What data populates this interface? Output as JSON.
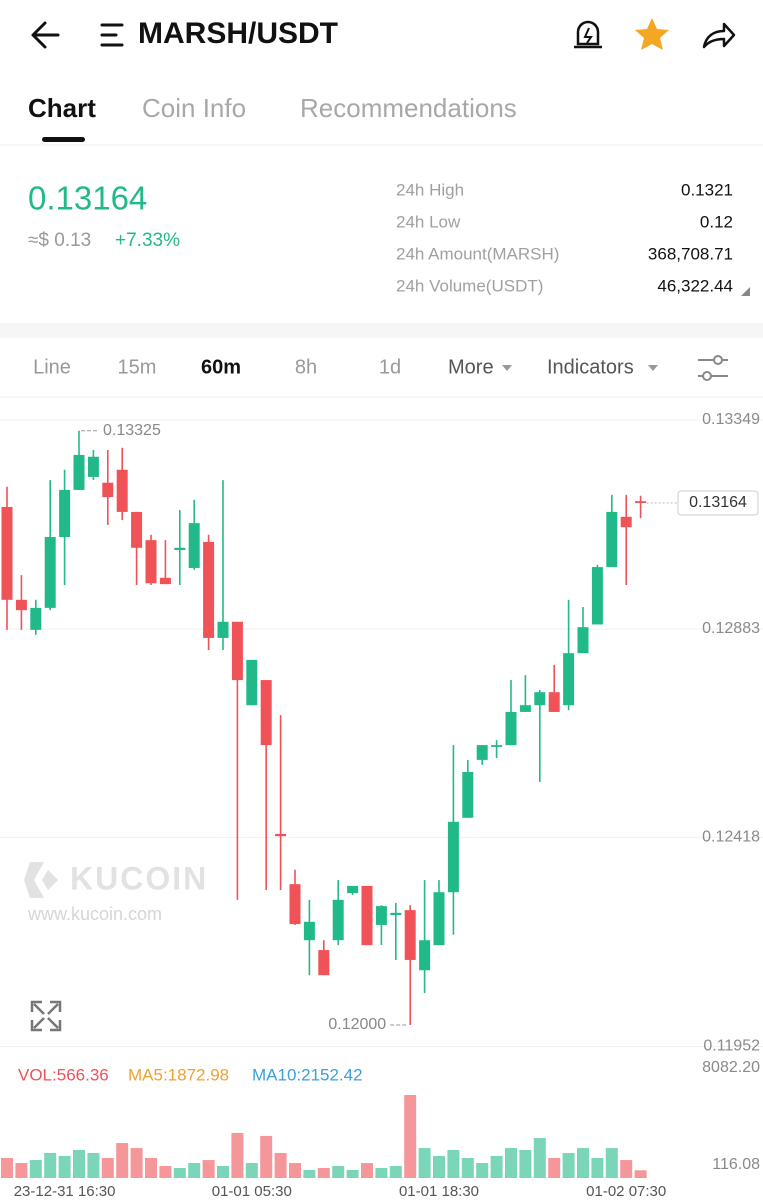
{
  "header": {
    "title": "MARSH/USDT"
  },
  "tabs": [
    "Chart",
    "Coin Info",
    "Recommendations"
  ],
  "ticker": {
    "price": "0.13164",
    "usd": "≈$ 0.13",
    "change": "+7.33%"
  },
  "stats": [
    {
      "label": "24h High",
      "value": "0.1321"
    },
    {
      "label": "24h Low",
      "value": "0.12"
    },
    {
      "label": "24h Amount(MARSH)",
      "value": "368,708.71"
    },
    {
      "label": "24h Volume(USDT)",
      "value": "46,322.44"
    }
  ],
  "intervals": [
    "Line",
    "15m",
    "60m",
    "8h",
    "1d",
    "More",
    "Indicators"
  ],
  "watermark": {
    "brand": "KUCOIN",
    "url": "www.kucoin.com"
  },
  "chart_data": {
    "type": "candlestick",
    "categories": [
      null,
      null,
      null,
      null,
      "23-12-31 16:30",
      null,
      null,
      null,
      null,
      null,
      null,
      null,
      null,
      null,
      null,
      null,
      null,
      "01-01 05:30",
      null,
      null,
      null,
      null,
      null,
      null,
      null,
      null,
      null,
      null,
      null,
      null,
      "01-01 18:30",
      null,
      null,
      null,
      null,
      null,
      null,
      null,
      null,
      null,
      null,
      null,
      null,
      "01-02 07:30",
      null
    ],
    "open": [
      0.13155,
      0.12948,
      0.12881,
      0.1293,
      0.13088,
      0.13193,
      0.13222,
      0.13209,
      0.13238,
      0.13144,
      0.13081,
      0.12997,
      0.13059,
      0.13019,
      0.13077,
      0.12863,
      0.12899,
      0.12713,
      0.12769,
      0.12426,
      0.12314,
      0.12189,
      0.12167,
      0.12189,
      0.12294,
      0.1231,
      0.12223,
      0.12245,
      0.12256,
      0.12122,
      0.12178,
      0.12296,
      0.12462,
      0.12591,
      0.1262,
      0.12624,
      0.12698,
      0.12713,
      0.12742,
      0.12713,
      0.12829,
      0.12893,
      0.13021,
      0.13133,
      0.13168
    ],
    "high": [
      0.132,
      0.13003,
      0.12948,
      0.13215,
      0.13238,
      0.13325,
      0.13282,
      0.13282,
      0.13287,
      0.13144,
      0.13093,
      0.13081,
      0.13148,
      0.13171,
      0.13093,
      0.13215,
      0.12899,
      0.12814,
      0.12769,
      0.12691,
      0.12346,
      0.12279,
      0.12189,
      0.12323,
      0.1231,
      0.1231,
      0.12267,
      0.12272,
      0.12267,
      0.12323,
      0.12323,
      0.12624,
      0.12591,
      0.12624,
      0.12635,
      0.12769,
      0.1278,
      0.12747,
      0.12803,
      0.12948,
      0.12932,
      0.13026,
      0.13182,
      0.13182,
      0.1318
    ],
    "low": [
      0.12881,
      0.12881,
      0.1287,
      0.12925,
      0.12981,
      0.13193,
      0.13215,
      0.13115,
      0.13126,
      0.12981,
      0.12981,
      0.12983,
      0.12981,
      0.13015,
      0.12836,
      0.12836,
      0.12279,
      0.12713,
      0.12301,
      0.12301,
      0.12223,
      0.12111,
      0.12111,
      0.12178,
      0.1229,
      0.12178,
      0.12178,
      0.12145,
      0.12,
      0.12071,
      0.12178,
      0.12201,
      0.12462,
      0.1258,
      0.12595,
      0.12624,
      0.12698,
      0.12542,
      0.12698,
      0.12702,
      0.12829,
      0.12893,
      0.13021,
      0.12981,
      0.1313
    ],
    "close": [
      0.12948,
      0.12925,
      0.1293,
      0.13088,
      0.13193,
      0.13271,
      0.13267,
      0.13177,
      0.13144,
      0.13064,
      0.12985,
      0.12983,
      0.13064,
      0.13119,
      0.12863,
      0.12899,
      0.12769,
      0.12814,
      0.12624,
      0.12421,
      0.12225,
      0.1223,
      0.12111,
      0.12279,
      0.1231,
      0.12178,
      0.12265,
      0.1225,
      0.12145,
      0.12189,
      0.12296,
      0.12453,
      0.12564,
      0.12624,
      0.12624,
      0.12698,
      0.12713,
      0.12742,
      0.12698,
      0.12829,
      0.12887,
      0.13021,
      0.13144,
      0.1311,
      0.13164
    ],
    "colors": {
      "up": "#22b98a",
      "down": "#ef5257"
    },
    "ylim": [
      0.11933,
      0.13398
    ],
    "yticks": [
      0.13349,
      0.12883,
      0.12418,
      0.11952
    ],
    "grid": true,
    "last_price": 0.13164,
    "annotations": [
      "0.13325",
      "0.12000"
    ],
    "volume": {
      "values": [
        1470,
        1100,
        1320,
        1840,
        1620,
        2060,
        1840,
        1470,
        2570,
        2200,
        1470,
        880,
        735,
        1100,
        1320,
        880,
        3310,
        1100,
        3090,
        1840,
        1100,
        590,
        735,
        880,
        590,
        1100,
        735,
        880,
        6100,
        2200,
        1620,
        2060,
        1470,
        1100,
        1620,
        2200,
        2060,
        2940,
        1470,
        1840,
        2200,
        1470,
        2200,
        1320,
        566.36
      ],
      "ylim": [
        0,
        8082.2
      ],
      "yticks": [
        {
          "value": 8082.2,
          "label": "8082.20"
        },
        116.08
      ],
      "legend": [
        {
          "text": "VOL:566.36",
          "color": "#ef5257"
        },
        {
          "text": "MA5:1872.98",
          "color": "#f0a030"
        },
        {
          "text": "MA10:2152.42",
          "color": "#3aa0d8"
        }
      ]
    }
  }
}
